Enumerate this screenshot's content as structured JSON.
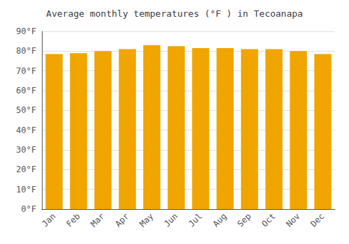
{
  "chart_data": {
    "type": "bar",
    "title": "Average monthly temperatures (°F ) in Tecoanapa",
    "categories": [
      "Jan",
      "Feb",
      "Mar",
      "Apr",
      "May",
      "Jun",
      "Jul",
      "Aug",
      "Sep",
      "Oct",
      "Nov",
      "Dec"
    ],
    "values": [
      78.5,
      79.0,
      80.0,
      81.0,
      83.0,
      82.5,
      81.5,
      81.5,
      81.0,
      81.0,
      80.0,
      78.5
    ],
    "color": "#F0A500",
    "ylim": [
      0,
      90
    ],
    "yticks": [
      {
        "value": 0,
        "label": "0°F"
      },
      {
        "value": 10,
        "label": "10°F"
      },
      {
        "value": 20,
        "label": "20°F"
      },
      {
        "value": 30,
        "label": "30°F"
      },
      {
        "value": 40,
        "label": "40°F"
      },
      {
        "value": 50,
        "label": "50°F"
      },
      {
        "value": 60,
        "label": "60°F"
      },
      {
        "value": 70,
        "label": "70°F"
      },
      {
        "value": 80,
        "label": "80°F"
      },
      {
        "value": 90,
        "label": "90°F"
      }
    ],
    "grid": true
  }
}
